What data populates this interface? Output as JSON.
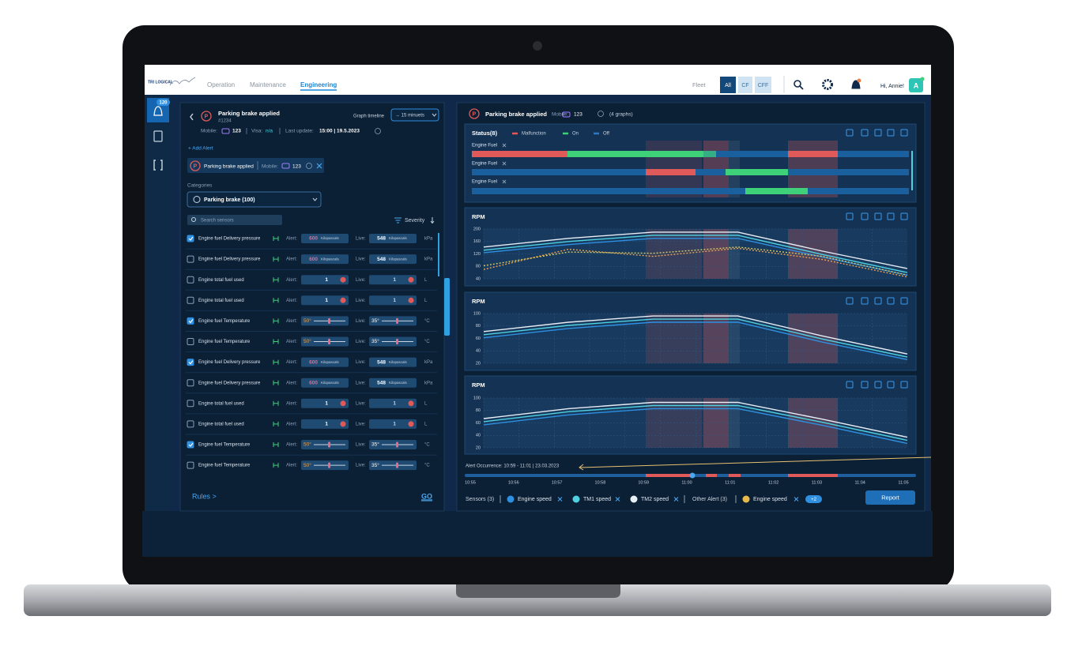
{
  "nav": {
    "logo": "TRI LOGICAL",
    "tabs": [
      "Operation",
      "Maintenance",
      "Engineering"
    ],
    "active_tab": 2,
    "fleet_label": "Fleet",
    "fleet_options": [
      "All",
      "CF",
      "CFF"
    ],
    "greeting": "Hi, Annie!",
    "avatar": "A"
  },
  "sidebar": {
    "alert_count": 120
  },
  "alert_panel": {
    "title": "Parking brake applied",
    "id": "#1234",
    "timeline_label": "Graph timeline",
    "timeline_value": "→ 15 minuets",
    "mobile_label": "Mobile:",
    "mobile_value": "123",
    "visa_label": "Visa:",
    "visa_value": "n/a",
    "update_label": "Last update:",
    "update_value": "15:00 | 19.5.2023",
    "add_alert": "+ Add Alert",
    "chip": {
      "title": "Parking brake applied",
      "mobile_label": "Mobile:",
      "mobile_value": "123"
    },
    "categories_label": "Categories",
    "category": "Parking brake (100)",
    "search_placeholder": "Search sensors",
    "severity": "Severity",
    "alert_label": "Alert:",
    "live_label": "Live:",
    "pressure_unit_label": "Kilopascals",
    "sensors": [
      {
        "name": "Engine fuel Delivery pressure",
        "checked": true,
        "input": "pressure",
        "alert": "600",
        "live": "548",
        "unit": "kPa"
      },
      {
        "name": "Engine fuel Delivery pressure",
        "checked": false,
        "input": "pressure",
        "alert": "600",
        "live": "548",
        "unit": "kPa"
      },
      {
        "name": "Engine total fuel used",
        "checked": false,
        "input": "count",
        "alert": "1",
        "live": "1",
        "unit": "L"
      },
      {
        "name": "Engine total fuel used",
        "checked": false,
        "input": "count",
        "alert": "1",
        "live": "1",
        "unit": "L"
      },
      {
        "name": "Engine fuel Temperature",
        "checked": true,
        "input": "slider",
        "alert": "50°",
        "live": "35°",
        "unit": "°C"
      },
      {
        "name": "Engine fuel Temperature",
        "checked": false,
        "input": "slider",
        "alert": "50°",
        "live": "35°",
        "unit": "°C"
      },
      {
        "name": "Engine fuel Delivery pressure",
        "checked": true,
        "input": "pressure",
        "alert": "600",
        "live": "548",
        "unit": "kPa"
      },
      {
        "name": "Engine fuel Delivery pressure",
        "checked": false,
        "input": "pressure",
        "alert": "600",
        "live": "548",
        "unit": "kPa"
      },
      {
        "name": "Engine total fuel used",
        "checked": false,
        "input": "count",
        "alert": "1",
        "live": "1",
        "unit": "L"
      },
      {
        "name": "Engine total fuel used",
        "checked": false,
        "input": "count",
        "alert": "1",
        "live": "1",
        "unit": "L"
      },
      {
        "name": "Engine fuel Temperature",
        "checked": true,
        "input": "slider",
        "alert": "50°",
        "live": "35°",
        "unit": "°C"
      },
      {
        "name": "Engine fuel Temperature",
        "checked": false,
        "input": "slider",
        "alert": "50°",
        "live": "35°",
        "unit": "°C"
      }
    ],
    "rules": "Rules >",
    "go": "GO"
  },
  "graphs": {
    "title": "Parking brake applied",
    "mobile_label": "Mobile:",
    "mobile_value": "123",
    "count": "(4 graphs)",
    "status": {
      "title": "Status(8)",
      "legend": [
        {
          "name": "Malfunction",
          "color": "#e05a5a"
        },
        {
          "name": "On",
          "color": "#3fd07a"
        },
        {
          "name": "Off",
          "color": "#2a78c8"
        }
      ],
      "rows": [
        "Engine Fuel",
        "Engine Fuel",
        "Engine Fuel"
      ]
    },
    "timeline": {
      "label": "Alert Occurrence: 10:59 - 11:01 | 23.03.2023",
      "ticks": [
        "10:55",
        "10:56",
        "10:57",
        "10:58",
        "10:59",
        "11:00",
        "11:01",
        "11:02",
        "11:03",
        "11:04",
        "11:05"
      ]
    },
    "footer": {
      "sensors_label": "Sensors (3)",
      "sensors": [
        {
          "name": "Engine speed",
          "color": "#2f8fe0"
        },
        {
          "name": "TM1 speed",
          "color": "#4fd1e0"
        },
        {
          "name": "TM2 speed",
          "color": "#e8eef5"
        }
      ],
      "other_label": "Other Alert (3)",
      "other": [
        {
          "name": "Engine speed",
          "color": "#e8b84a"
        }
      ],
      "more": "+2",
      "report": "Report"
    }
  },
  "chart_data": [
    {
      "type": "line",
      "title": "RPM",
      "ylim": [
        40,
        200
      ],
      "yticks": [
        40,
        80,
        120,
        160,
        200
      ],
      "grid": true,
      "series": [
        {
          "color": "#e8eef5",
          "values": [
            142,
            170,
            190,
            190,
            129,
            73
          ]
        },
        {
          "color": "#4fd1e0",
          "values": [
            132,
            160,
            180,
            180,
            118,
            60
          ]
        },
        {
          "color": "#2f8fe0",
          "values": [
            124,
            150,
            170,
            170,
            110,
            52
          ]
        },
        {
          "color": "#e8a050",
          "dashed": true,
          "values": [
            70,
            135,
            112,
            138,
            102,
            46
          ]
        },
        {
          "color": "#d8c860",
          "dashed": true,
          "values": [
            82,
            126,
            122,
            142,
            112,
            52
          ]
        }
      ]
    },
    {
      "type": "line",
      "title": "RPM",
      "ylim": [
        20,
        100
      ],
      "yticks": [
        20,
        40,
        60,
        80,
        100
      ],
      "grid": true,
      "series": [
        {
          "color": "#e8eef5",
          "values": [
            71,
            86,
            96,
            96,
            64,
            35
          ]
        },
        {
          "color": "#4fd1e0",
          "values": [
            66,
            81,
            91,
            91,
            59,
            30
          ]
        },
        {
          "color": "#2f8fe0",
          "values": [
            61,
            76,
            86,
            86,
            54,
            26
          ]
        }
      ]
    },
    {
      "type": "line",
      "title": "RPM",
      "ylim": [
        20,
        100
      ],
      "yticks": [
        20,
        40,
        60,
        80,
        100
      ],
      "grid": true,
      "series": [
        {
          "color": "#e8eef5",
          "values": [
            67,
            83,
            93,
            93,
            66,
            37
          ]
        },
        {
          "color": "#4fd1e0",
          "values": [
            62,
            78,
            88,
            88,
            61,
            32
          ]
        },
        {
          "color": "#2f8fe0",
          "values": [
            57,
            73,
            83,
            83,
            56,
            27
          ]
        }
      ]
    }
  ]
}
